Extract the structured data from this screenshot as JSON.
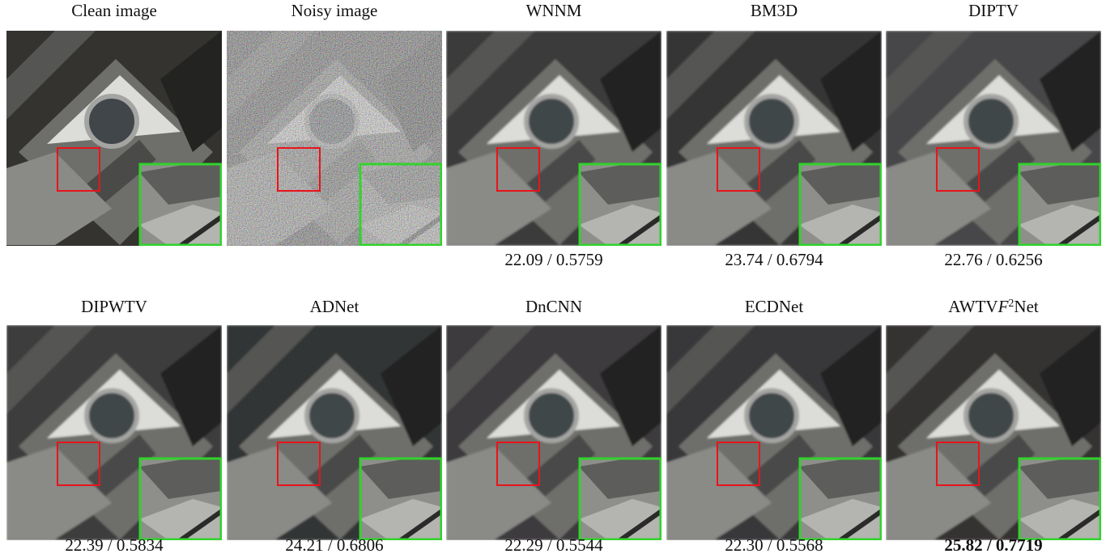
{
  "figure": {
    "panels": [
      {
        "label": "Clean image"
      },
      {
        "label": "Noisy image"
      },
      {
        "label": "WNNM",
        "metric": "22.09 / 0.5759"
      },
      {
        "label": "BM3D",
        "metric": "23.74 / 0.6794"
      },
      {
        "label": "DIPTV",
        "metric": "22.76 / 0.6256"
      },
      {
        "label": "DIPWTV",
        "metric": "22.39 / 0.5834"
      },
      {
        "label": "ADNet",
        "metric": "24.21 / 0.6806"
      },
      {
        "label": "DnCNN",
        "metric": "22.29 / 0.5544"
      },
      {
        "label": "ECDNet",
        "metric": "22.30 / 0.5568"
      },
      {
        "label_parts": [
          "AWTV",
          "F",
          "2",
          "Net"
        ],
        "metric": "25.82 / 0.7719",
        "bold": true
      }
    ]
  }
}
